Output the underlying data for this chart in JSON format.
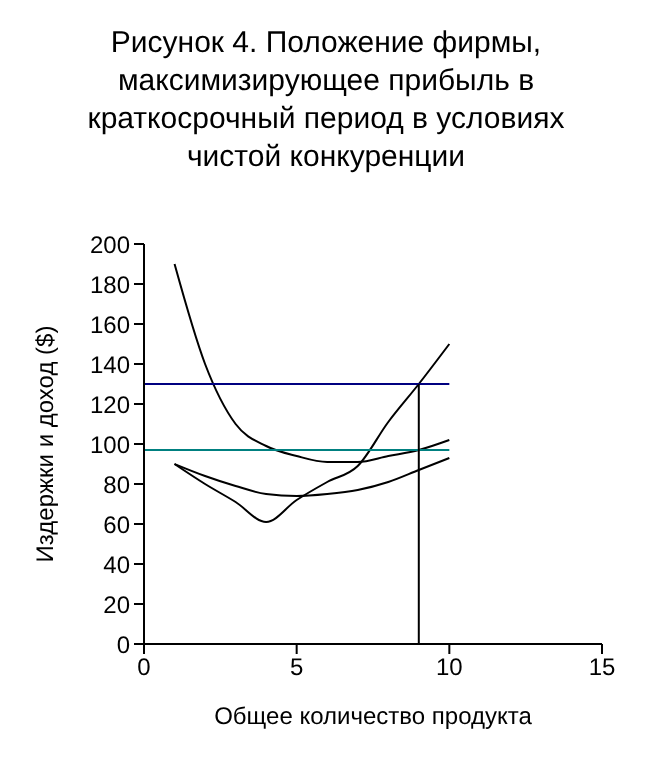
{
  "chart_data": {
    "type": "line",
    "title": "Рисунок 4. Положение фирмы, максимизирующее прибыль в краткосрочный период в условиях чистой конкуренции",
    "xlabel": "Общее количество продукта",
    "ylabel": "Издержки и доход ($)",
    "xlim": [
      0,
      15
    ],
    "xticks": [
      0,
      5,
      10,
      15
    ],
    "ylim": [
      0,
      200
    ],
    "yticks": [
      0,
      20,
      40,
      60,
      80,
      100,
      120,
      140,
      160,
      180,
      200
    ],
    "grid": false,
    "marker": "none",
    "line_style": "solid",
    "series": [
      {
        "color": "#000000",
        "x": [
          1,
          2,
          3,
          4,
          5,
          6,
          7,
          8,
          9,
          10
        ],
        "values": [
          190,
          140,
          110,
          99,
          94,
          91,
          91,
          94,
          97,
          102
        ]
      },
      {
        "color": "#000000",
        "x": [
          1,
          2,
          3,
          4,
          5,
          6,
          7,
          8,
          9,
          10
        ],
        "values": [
          90,
          80,
          71,
          61,
          72,
          81,
          89,
          111,
          130,
          150
        ]
      },
      {
        "color": "#000000",
        "x": [
          1,
          2,
          3,
          4,
          5,
          6,
          7,
          8,
          9,
          10
        ],
        "values": [
          90,
          84,
          79,
          75,
          74,
          75,
          77,
          81,
          87,
          93
        ]
      },
      {
        "color": "#000080",
        "x": [
          0,
          10
        ],
        "values": [
          130,
          130
        ]
      },
      {
        "color": "#008080",
        "x": [
          0,
          10
        ],
        "values": [
          97,
          97
        ]
      },
      {
        "color": "#000000",
        "x": [
          9,
          9
        ],
        "values": [
          0,
          130
        ]
      }
    ]
  }
}
